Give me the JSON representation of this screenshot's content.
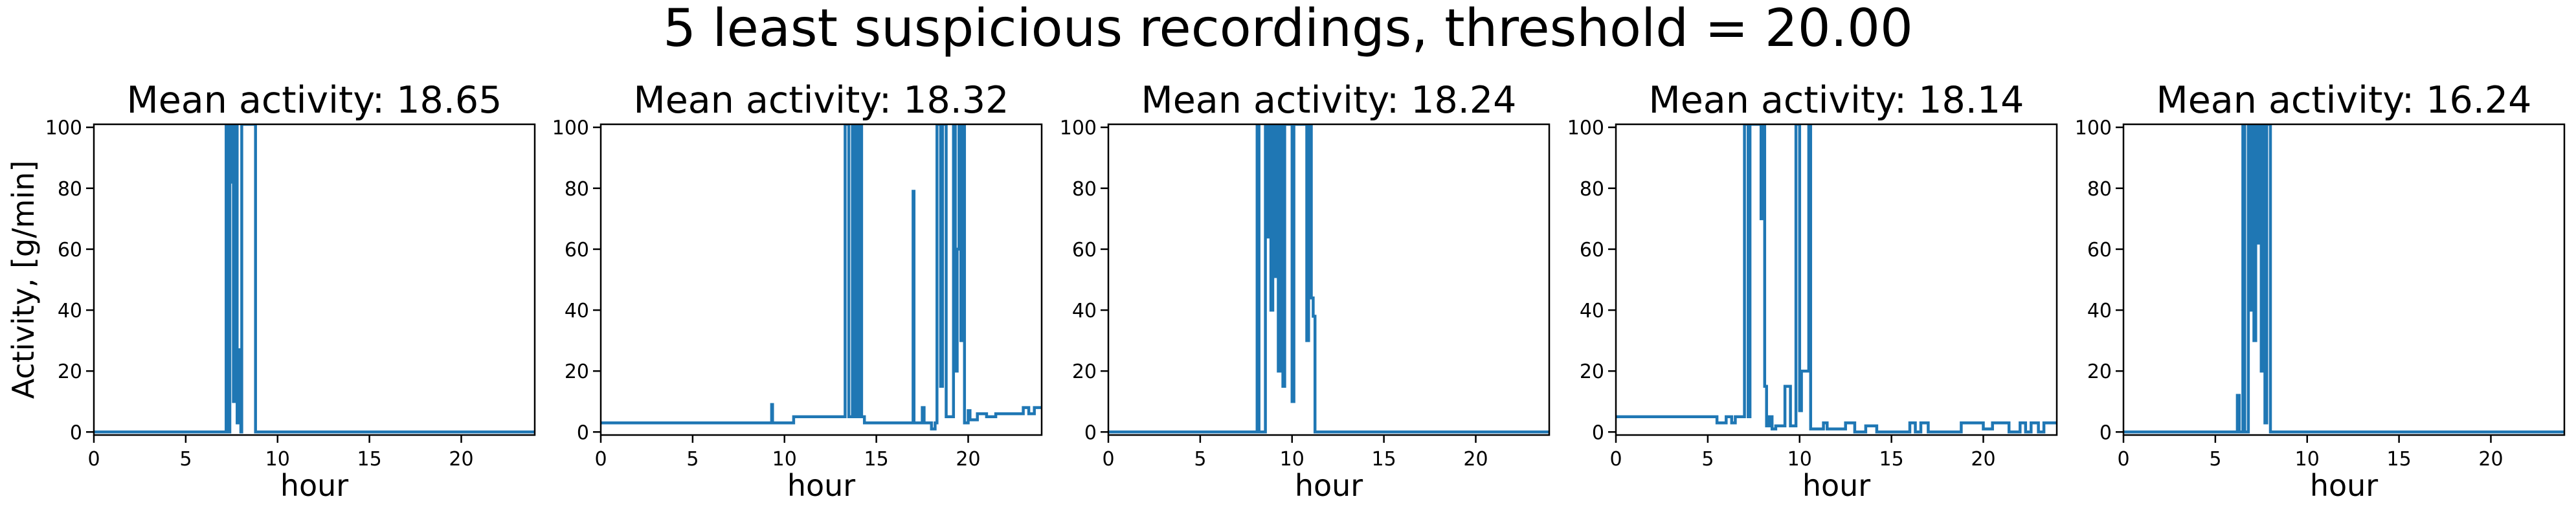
{
  "suptitle": "5 least suspicious recordings, threshold = 20.00",
  "colors": {
    "line": "#1f77b4",
    "axes": "#000000"
  },
  "chart_data": [
    {
      "type": "line",
      "title": "Mean activity: 18.65",
      "xlabel": "hour",
      "ylabel": "Activity, [g/min]",
      "xlim": [
        0,
        24
      ],
      "ylim": [
        -1,
        101
      ],
      "xticks": [
        0,
        5,
        10,
        15,
        20
      ],
      "yticks": [
        0,
        20,
        40,
        60,
        80,
        100
      ],
      "grid": false,
      "series": [
        {
          "x": [
            0,
            7.2,
            7.2,
            7.35,
            7.35,
            7.4,
            7.4,
            7.5,
            7.5,
            7.55,
            7.55,
            7.6,
            7.6,
            7.7,
            7.7,
            7.8,
            7.8,
            7.9,
            7.9,
            8.0,
            8.0,
            8.05,
            8.05,
            8.8,
            8.8,
            24
          ],
          "y": [
            0,
            0,
            101,
            101,
            0,
            0,
            101,
            101,
            82,
            82,
            101,
            101,
            10,
            10,
            101,
            101,
            3,
            3,
            27,
            27,
            0,
            0,
            101,
            101,
            0,
            0
          ]
        }
      ]
    },
    {
      "type": "line",
      "title": "Mean activity: 18.32",
      "xlabel": "hour",
      "ylabel": "",
      "xlim": [
        0,
        24
      ],
      "ylim": [
        -1,
        101
      ],
      "xticks": [
        0,
        5,
        10,
        15,
        20
      ],
      "yticks": [
        0,
        20,
        40,
        60,
        80,
        100
      ],
      "grid": false,
      "series": [
        {
          "x": [
            0,
            9.3,
            9.3,
            9.35,
            9.35,
            10.5,
            10.5,
            13.3,
            13.3,
            13.5,
            13.5,
            13.7,
            13.7,
            13.8,
            13.8,
            13.9,
            13.9,
            14.0,
            14.0,
            14.1,
            14.1,
            14.2,
            14.2,
            14.35,
            14.35,
            17.0,
            17.0,
            17.05,
            17.05,
            17.5,
            17.5,
            17.6,
            17.6,
            18.0,
            18.0,
            18.2,
            18.2,
            18.3,
            18.3,
            18.5,
            18.5,
            18.6,
            18.6,
            18.8,
            18.8,
            19.2,
            19.2,
            19.3,
            19.3,
            19.4,
            19.4,
            19.5,
            19.5,
            19.6,
            19.6,
            19.7,
            19.7,
            19.8,
            19.8,
            20.0,
            20.0,
            20.1,
            20.1,
            20.5,
            20.5,
            21.0,
            21.0,
            21.5,
            21.5,
            22.0,
            22.0,
            23.0,
            23.0,
            23.3,
            23.3,
            23.6,
            23.6,
            24
          ],
          "y": [
            3,
            3,
            9,
            9,
            3,
            3,
            5,
            5,
            101,
            101,
            5,
            5,
            101,
            101,
            5,
            5,
            101,
            101,
            5,
            5,
            101,
            101,
            5,
            5,
            3,
            3,
            79,
            79,
            3,
            3,
            8,
            8,
            3,
            3,
            1,
            1,
            3,
            3,
            101,
            101,
            15,
            15,
            101,
            101,
            5,
            5,
            101,
            101,
            20,
            20,
            60,
            60,
            101,
            101,
            30,
            30,
            101,
            101,
            3,
            3,
            7,
            7,
            4,
            4,
            6,
            6,
            5,
            5,
            6,
            6,
            6,
            6,
            8,
            8,
            6,
            6,
            8,
            8
          ]
        }
      ]
    },
    {
      "type": "line",
      "title": "Mean activity: 18.24",
      "xlabel": "hour",
      "ylabel": "",
      "xlim": [
        0,
        24
      ],
      "ylim": [
        -1,
        101
      ],
      "xticks": [
        0,
        5,
        10,
        15,
        20
      ],
      "yticks": [
        0,
        20,
        40,
        60,
        80,
        100
      ],
      "grid": false,
      "series": [
        {
          "x": [
            0,
            8.1,
            8.1,
            8.2,
            8.2,
            8.55,
            8.55,
            8.65,
            8.65,
            8.75,
            8.75,
            8.85,
            8.85,
            8.95,
            8.95,
            9.05,
            9.05,
            9.15,
            9.15,
            9.25,
            9.25,
            9.35,
            9.35,
            9.5,
            9.5,
            9.6,
            9.6,
            10.0,
            10.0,
            10.1,
            10.1,
            10.8,
            10.8,
            10.9,
            10.9,
            11.05,
            11.05,
            11.15,
            11.15,
            11.25,
            11.25,
            24
          ],
          "y": [
            0,
            0,
            101,
            101,
            0,
            0,
            101,
            101,
            64,
            64,
            101,
            101,
            40,
            40,
            101,
            101,
            51,
            51,
            101,
            101,
            20,
            20,
            101,
            101,
            15,
            15,
            101,
            101,
            10,
            10,
            101,
            101,
            30,
            30,
            101,
            101,
            44,
            44,
            38,
            38,
            0,
            0
          ]
        }
      ]
    },
    {
      "type": "line",
      "title": "Mean activity: 18.14",
      "xlabel": "hour",
      "ylabel": "",
      "xlim": [
        0,
        24
      ],
      "ylim": [
        -1,
        101
      ],
      "xticks": [
        0,
        5,
        10,
        15,
        20
      ],
      "yticks": [
        0,
        20,
        40,
        60,
        80,
        100
      ],
      "grid": false,
      "series": [
        {
          "x": [
            0,
            5.5,
            5.5,
            6.0,
            6.0,
            6.3,
            6.3,
            6.5,
            6.5,
            7.0,
            7.0,
            7.2,
            7.2,
            7.3,
            7.3,
            7.9,
            7.9,
            8.0,
            8.0,
            8.1,
            8.1,
            8.2,
            8.2,
            8.35,
            8.35,
            8.5,
            8.5,
            8.7,
            8.7,
            9.2,
            9.2,
            9.5,
            9.5,
            9.8,
            9.8,
            10.0,
            10.0,
            10.1,
            10.1,
            10.5,
            10.5,
            10.6,
            10.6,
            11.3,
            11.3,
            11.5,
            11.5,
            12.5,
            12.5,
            13.0,
            13.0,
            13.6,
            13.6,
            14.2,
            14.2,
            16.0,
            16.0,
            16.3,
            16.3,
            16.6,
            16.6,
            17.0,
            17.0,
            18.8,
            18.8,
            20.0,
            20.0,
            20.5,
            20.5,
            21.4,
            21.4,
            22.0,
            22.0,
            22.3,
            22.3,
            22.6,
            22.6,
            23.0,
            23.0,
            23.3,
            23.3,
            24
          ],
          "y": [
            5,
            5,
            3,
            3,
            5,
            5,
            3,
            3,
            5,
            5,
            101,
            101,
            5,
            5,
            101,
            101,
            70,
            70,
            101,
            101,
            15,
            15,
            2,
            2,
            5,
            5,
            1,
            1,
            2,
            2,
            15,
            15,
            2,
            2,
            101,
            101,
            7,
            7,
            20,
            20,
            101,
            101,
            1,
            1,
            3,
            3,
            1,
            1,
            3,
            3,
            0,
            0,
            2,
            2,
            0,
            0,
            3,
            3,
            0,
            0,
            3,
            3,
            0,
            0,
            3,
            3,
            1,
            1,
            3,
            3,
            0,
            0,
            3,
            3,
            0,
            0,
            3,
            3,
            0,
            0,
            3,
            3
          ]
        }
      ]
    },
    {
      "type": "line",
      "title": "Mean activity: 16.24",
      "xlabel": "hour",
      "ylabel": "",
      "xlim": [
        0,
        24
      ],
      "ylim": [
        -1,
        101
      ],
      "xticks": [
        0,
        5,
        10,
        15,
        20
      ],
      "yticks": [
        0,
        20,
        40,
        60,
        80,
        100
      ],
      "grid": false,
      "series": [
        {
          "x": [
            0,
            6.2,
            6.2,
            6.3,
            6.3,
            6.5,
            6.5,
            6.6,
            6.6,
            6.8,
            6.8,
            6.9,
            6.9,
            7.0,
            7.0,
            7.1,
            7.1,
            7.2,
            7.2,
            7.3,
            7.3,
            7.4,
            7.4,
            7.5,
            7.5,
            7.6,
            7.6,
            7.7,
            7.7,
            7.8,
            7.8,
            8.0,
            8.0,
            24
          ],
          "y": [
            0,
            0,
            12,
            12,
            0,
            0,
            101,
            101,
            0,
            0,
            101,
            101,
            40,
            40,
            101,
            101,
            30,
            30,
            101,
            101,
            62,
            62,
            101,
            101,
            20,
            20,
            101,
            101,
            3,
            3,
            101,
            101,
            0,
            0
          ]
        }
      ]
    }
  ]
}
